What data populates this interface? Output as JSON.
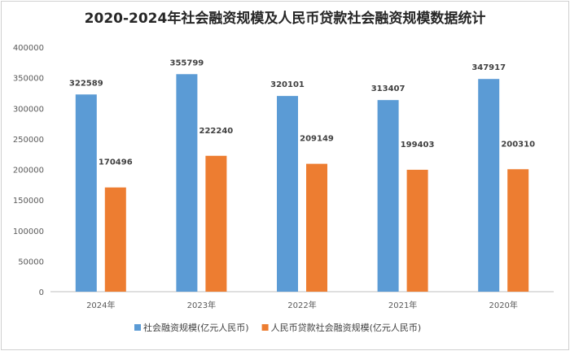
{
  "chart_data": {
    "type": "bar",
    "title": "2020-2024年社会融资规模及人民币贷款社会融资规模数据统计",
    "categories": [
      "2024年",
      "2023年",
      "2022年",
      "2021年",
      "2020年"
    ],
    "series": [
      {
        "name": "社会融资规模(亿元人民币)",
        "color": "#5b9bd5",
        "values": [
          322589,
          355799,
          320101,
          313407,
          347917
        ]
      },
      {
        "name": "人民币贷款社会融资规模(亿元人民币)",
        "color": "#ed7d31",
        "values": [
          170496,
          222240,
          209149,
          199403,
          200310
        ]
      }
    ],
    "yticks": [
      0,
      50000,
      100000,
      150000,
      200000,
      250000,
      300000,
      350000,
      400000
    ],
    "ylim": [
      0,
      400000
    ],
    "grid": false,
    "legend_position": "bottom"
  }
}
